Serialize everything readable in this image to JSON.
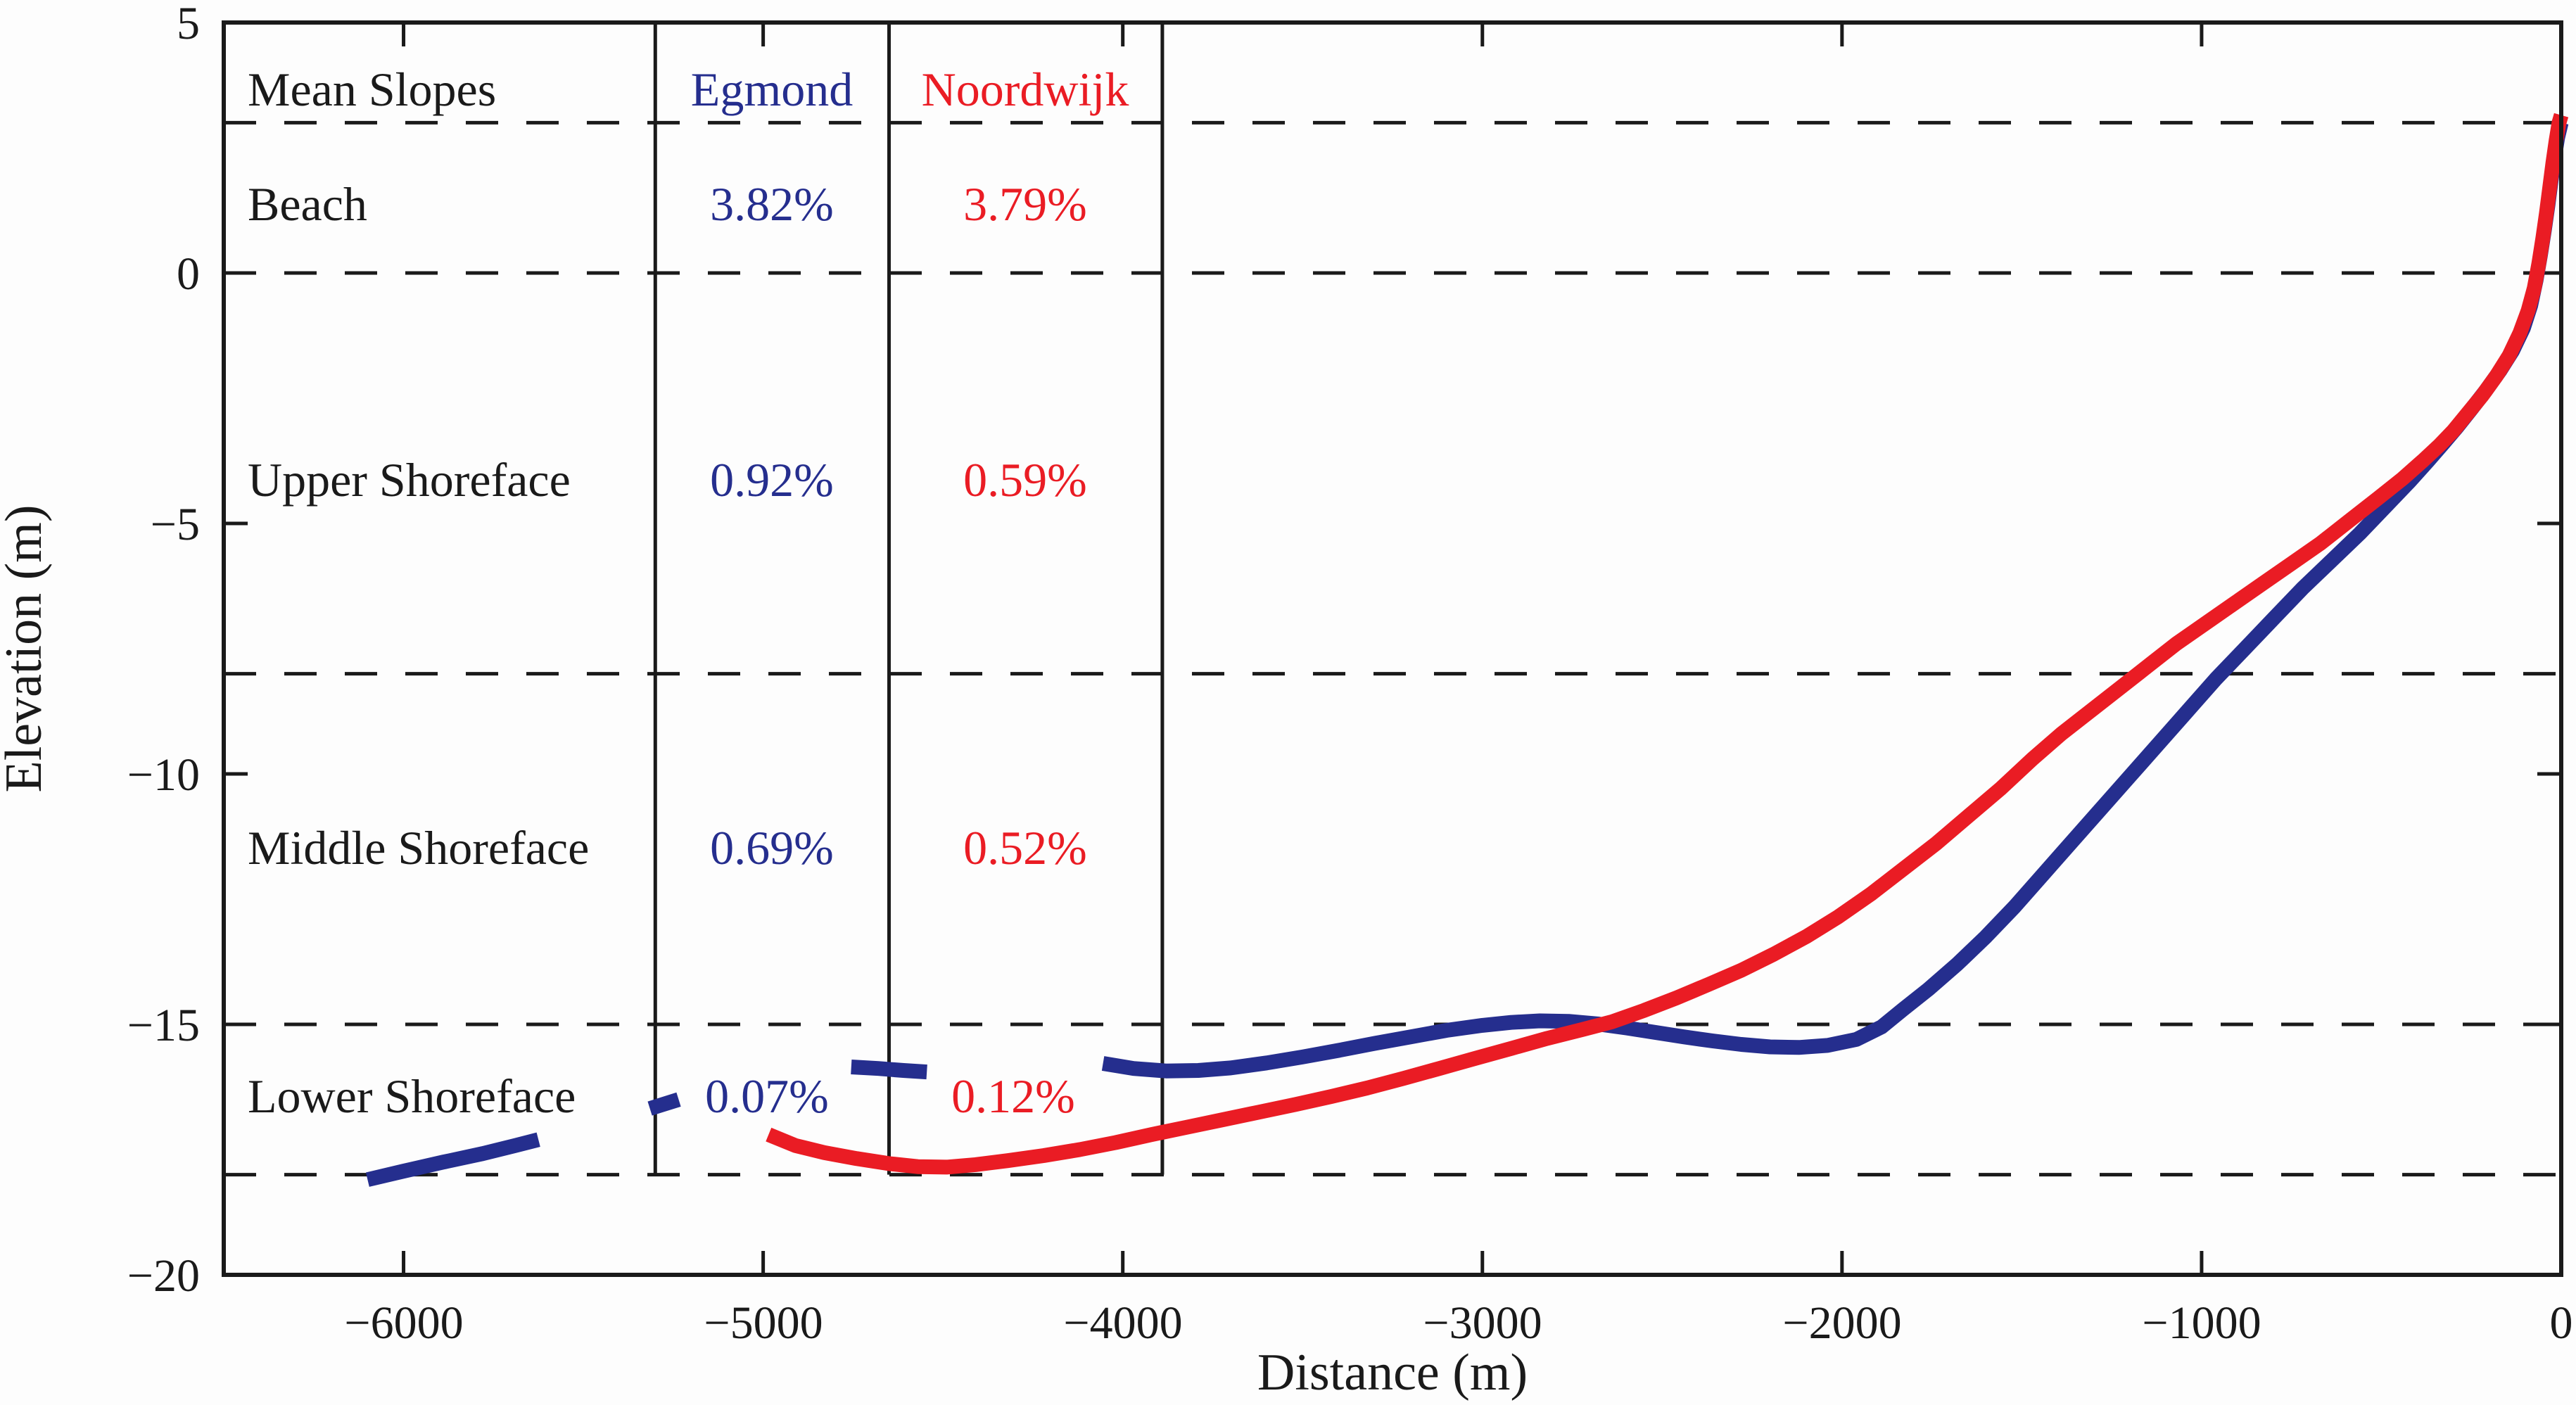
{
  "labels": {
    "xlabel": "Distance (m)",
    "ylabel": "Elevation (m)"
  },
  "colors": {
    "ink": "#1a1a1a",
    "paper": "#fdfdfd",
    "egmond_blue": "#252e8e",
    "noordwijk_red": "#ea1c24"
  },
  "slope_table": {
    "header": {
      "title": "Mean Slopes",
      "egmond": "Egmond",
      "noordwijk": "Noordwijk"
    },
    "rows": [
      {
        "label": "Beach",
        "egmond": "3.82%",
        "noordwijk": "3.79%"
      },
      {
        "label": "Upper Shoreface",
        "egmond": "0.92%",
        "noordwijk": "0.59%"
      },
      {
        "label": "Middle Shoreface",
        "egmond": "0.69%",
        "noordwijk": "0.52%"
      },
      {
        "label": "Lower Shoreface",
        "egmond": "0.07%",
        "noordwijk": "0.12%"
      }
    ]
  },
  "chart_data": {
    "type": "line",
    "title": "",
    "xlabel": "Distance (m)",
    "ylabel": "Elevation (m)",
    "xlim": [
      -6500,
      0
    ],
    "ylim": [
      -20,
      5
    ],
    "xticks": [
      -6000,
      -5000,
      -4000,
      -3000,
      -2000,
      -1000,
      0
    ],
    "yticks": [
      5,
      0,
      -5,
      -10,
      -15,
      -20
    ],
    "xtick_labels": [
      "−6000",
      "−5000",
      "−4000",
      "−3000",
      "−2000",
      "−1000",
      "0"
    ],
    "ytick_labels": [
      "5",
      "0",
      "−5",
      "−10",
      "−15",
      "−20"
    ],
    "grid": "dashed-horizontal",
    "dashed_gridlines_y": [
      3,
      0,
      -8,
      -15,
      -18
    ],
    "zone_divider_lines_x": [
      -5300,
      -4650,
      -3890
    ],
    "zone_divider_y_extent": [
      5,
      -18
    ],
    "legend_position": "table-overlay-top-left",
    "series": [
      {
        "name": "Egmond",
        "color": "#252e8e",
        "segments": [
          [
            [
              -6100,
              -18.1
            ],
            [
              -6000,
              -17.93
            ],
            [
              -5890,
              -17.75
            ],
            [
              -5780,
              -17.58
            ],
            [
              -5690,
              -17.42
            ],
            [
              -5625,
              -17.3
            ]
          ],
          [
            [
              -5315,
              -16.68
            ],
            [
              -5235,
              -16.5
            ]
          ],
          [
            [
              -4755,
              -15.85
            ],
            [
              -4680,
              -15.88
            ],
            [
              -4610,
              -15.92
            ],
            [
              -4545,
              -15.95
            ]
          ],
          [
            [
              -4055,
              -15.78
            ],
            [
              -3970,
              -15.88
            ],
            [
              -3880,
              -15.93
            ],
            [
              -3790,
              -15.92
            ],
            [
              -3700,
              -15.87
            ],
            [
              -3600,
              -15.77
            ],
            [
              -3500,
              -15.65
            ],
            [
              -3400,
              -15.52
            ],
            [
              -3300,
              -15.38
            ],
            [
              -3200,
              -15.25
            ],
            [
              -3100,
              -15.12
            ],
            [
              -3000,
              -15.02
            ],
            [
              -2920,
              -14.96
            ],
            [
              -2840,
              -14.93
            ],
            [
              -2760,
              -14.94
            ],
            [
              -2680,
              -14.99
            ],
            [
              -2600,
              -15.07
            ],
            [
              -2520,
              -15.16
            ],
            [
              -2440,
              -15.25
            ],
            [
              -2360,
              -15.33
            ],
            [
              -2280,
              -15.4
            ],
            [
              -2200,
              -15.45
            ],
            [
              -2120,
              -15.46
            ],
            [
              -2040,
              -15.42
            ],
            [
              -1960,
              -15.3
            ],
            [
              -1890,
              -15.05
            ],
            [
              -1830,
              -14.7
            ],
            [
              -1760,
              -14.3
            ],
            [
              -1680,
              -13.8
            ],
            [
              -1600,
              -13.25
            ],
            [
              -1520,
              -12.65
            ],
            [
              -1440,
              -12.0
            ],
            [
              -1360,
              -11.35
            ],
            [
              -1280,
              -10.7
            ],
            [
              -1200,
              -10.05
            ],
            [
              -1120,
              -9.4
            ],
            [
              -1040,
              -8.75
            ],
            [
              -960,
              -8.1
            ],
            [
              -880,
              -7.5
            ],
            [
              -800,
              -6.9
            ],
            [
              -720,
              -6.3
            ],
            [
              -640,
              -5.75
            ],
            [
              -560,
              -5.2
            ],
            [
              -480,
              -4.6
            ],
            [
              -420,
              -4.15
            ],
            [
              -370,
              -3.75
            ],
            [
              -330,
              -3.42
            ],
            [
              -290,
              -3.08
            ],
            [
              -250,
              -2.72
            ],
            [
              -210,
              -2.35
            ],
            [
              -170,
              -1.95
            ],
            [
              -135,
              -1.55
            ],
            [
              -105,
              -1.1
            ],
            [
              -85,
              -0.65
            ],
            [
              -70,
              -0.15
            ],
            [
              -58,
              0.35
            ],
            [
              -47,
              0.85
            ],
            [
              -37,
              1.35
            ],
            [
              -28,
              1.85
            ],
            [
              -19,
              2.3
            ],
            [
              -10,
              2.7
            ],
            [
              0,
              3.0
            ]
          ]
        ]
      },
      {
        "name": "Noordwijk",
        "color": "#ea1c24",
        "segments": [
          [
            [
              -4985,
              -17.2
            ],
            [
              -4910,
              -17.42
            ],
            [
              -4830,
              -17.56
            ],
            [
              -4740,
              -17.68
            ],
            [
              -4650,
              -17.78
            ],
            [
              -4570,
              -17.84
            ],
            [
              -4490,
              -17.85
            ],
            [
              -4410,
              -17.8
            ],
            [
              -4320,
              -17.72
            ],
            [
              -4220,
              -17.62
            ],
            [
              -4120,
              -17.5
            ],
            [
              -4020,
              -17.36
            ],
            [
              -3920,
              -17.2
            ],
            [
              -3820,
              -17.05
            ],
            [
              -3720,
              -16.9
            ],
            [
              -3620,
              -16.75
            ],
            [
              -3520,
              -16.6
            ],
            [
              -3420,
              -16.44
            ],
            [
              -3320,
              -16.27
            ],
            [
              -3220,
              -16.08
            ],
            [
              -3120,
              -15.88
            ],
            [
              -3020,
              -15.68
            ],
            [
              -2920,
              -15.48
            ],
            [
              -2820,
              -15.28
            ],
            [
              -2720,
              -15.1
            ],
            [
              -2640,
              -14.95
            ],
            [
              -2550,
              -14.72
            ],
            [
              -2460,
              -14.47
            ],
            [
              -2370,
              -14.2
            ],
            [
              -2280,
              -13.92
            ],
            [
              -2190,
              -13.6
            ],
            [
              -2100,
              -13.25
            ],
            [
              -2010,
              -12.85
            ],
            [
              -1920,
              -12.4
            ],
            [
              -1830,
              -11.9
            ],
            [
              -1740,
              -11.4
            ],
            [
              -1650,
              -10.85
            ],
            [
              -1560,
              -10.3
            ],
            [
              -1470,
              -9.7
            ],
            [
              -1390,
              -9.2
            ],
            [
              -1310,
              -8.75
            ],
            [
              -1230,
              -8.3
            ],
            [
              -1150,
              -7.85
            ],
            [
              -1070,
              -7.4
            ],
            [
              -990,
              -7.0
            ],
            [
              -910,
              -6.6
            ],
            [
              -830,
              -6.2
            ],
            [
              -750,
              -5.8
            ],
            [
              -670,
              -5.4
            ],
            [
              -590,
              -4.95
            ],
            [
              -510,
              -4.5
            ],
            [
              -440,
              -4.1
            ],
            [
              -385,
              -3.75
            ],
            [
              -340,
              -3.45
            ],
            [
              -300,
              -3.15
            ],
            [
              -260,
              -2.8
            ],
            [
              -220,
              -2.45
            ],
            [
              -180,
              -2.05
            ],
            [
              -145,
              -1.65
            ],
            [
              -115,
              -1.2
            ],
            [
              -92,
              -0.75
            ],
            [
              -75,
              -0.3
            ],
            [
              -62,
              0.2
            ],
            [
              -51,
              0.7
            ],
            [
              -41,
              1.2
            ],
            [
              -32,
              1.7
            ],
            [
              -23,
              2.2
            ],
            [
              -14,
              2.65
            ],
            [
              -6,
              3.0
            ],
            [
              0,
              3.15
            ]
          ]
        ]
      }
    ]
  }
}
